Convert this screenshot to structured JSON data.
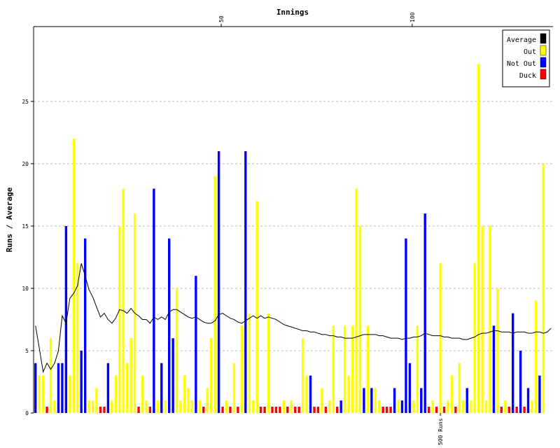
{
  "chart_data": {
    "type": "bar",
    "xlabel": "Innings",
    "ylabel": "Runs / Average",
    "ylim": [
      0,
      31
    ],
    "xlim": [
      0.5,
      136.5
    ],
    "yticks": [
      0,
      5,
      10,
      15,
      20,
      25
    ],
    "xticks": [
      50,
      100
    ],
    "grid": true,
    "legend_position": "top-right",
    "legend": [
      {
        "name": "Average",
        "color": "#000000"
      },
      {
        "name": "Out",
        "color": "#ffff00"
      },
      {
        "name": "Not Out",
        "color": "#0000ff"
      },
      {
        "name": "Duck",
        "color": "#ff0000"
      }
    ],
    "colors": {
      "out": "#ffff00",
      "not_out": "#0000ff",
      "duck": "#ff0000",
      "average": "#000000",
      "grid": "#bbbbbb"
    },
    "innings": [
      {
        "r": 4,
        "t": "N"
      },
      {
        "r": 3,
        "t": "O"
      },
      {
        "r": 3,
        "t": "O"
      },
      {
        "r": 0,
        "t": "D"
      },
      {
        "r": 6,
        "t": "O"
      },
      {
        "r": 1,
        "t": "O"
      },
      {
        "r": 4,
        "t": "N"
      },
      {
        "r": 4,
        "t": "N"
      },
      {
        "r": 15,
        "t": "N"
      },
      {
        "r": 3,
        "t": "O"
      },
      {
        "r": 22,
        "t": "O"
      },
      {
        "r": 12,
        "t": "O"
      },
      {
        "r": 5,
        "t": "N"
      },
      {
        "r": 14,
        "t": "N"
      },
      {
        "r": 1,
        "t": "O"
      },
      {
        "r": 1,
        "t": "O"
      },
      {
        "r": 2,
        "t": "O"
      },
      {
        "r": 0,
        "t": "D"
      },
      {
        "r": 0,
        "t": "D"
      },
      {
        "r": 4,
        "t": "N"
      },
      {
        "r": 1,
        "t": "O"
      },
      {
        "r": 3,
        "t": "O"
      },
      {
        "r": 15,
        "t": "O"
      },
      {
        "r": 18,
        "t": "O"
      },
      {
        "r": 4,
        "t": "O"
      },
      {
        "r": 6,
        "t": "O"
      },
      {
        "r": 16,
        "t": "O"
      },
      {
        "r": 0,
        "t": "D"
      },
      {
        "r": 3,
        "t": "O"
      },
      {
        "r": 1,
        "t": "O"
      },
      {
        "r": 0,
        "t": "D"
      },
      {
        "r": 18,
        "t": "N"
      },
      {
        "r": 1,
        "t": "O"
      },
      {
        "r": 4,
        "t": "N"
      },
      {
        "r": 1,
        "t": "O"
      },
      {
        "r": 14,
        "t": "N"
      },
      {
        "r": 6,
        "t": "N"
      },
      {
        "r": 10,
        "t": "O"
      },
      {
        "r": 1,
        "t": "O"
      },
      {
        "r": 3,
        "t": "O"
      },
      {
        "r": 2,
        "t": "O"
      },
      {
        "r": 1,
        "t": "O"
      },
      {
        "r": 11,
        "t": "N"
      },
      {
        "r": 1,
        "t": "O"
      },
      {
        "r": 0,
        "t": "D"
      },
      {
        "r": 2,
        "t": "O"
      },
      {
        "r": 6,
        "t": "O"
      },
      {
        "r": 19,
        "t": "O"
      },
      {
        "r": 21,
        "t": "N"
      },
      {
        "r": 0,
        "t": "D"
      },
      {
        "r": 1,
        "t": "O"
      },
      {
        "r": 0,
        "t": "D"
      },
      {
        "r": 4,
        "t": "O"
      },
      {
        "r": 0,
        "t": "D"
      },
      {
        "r": 7,
        "t": "O"
      },
      {
        "r": 21,
        "t": "N"
      },
      {
        "r": 8,
        "t": "O"
      },
      {
        "r": 1,
        "t": "O"
      },
      {
        "r": 17,
        "t": "O"
      },
      {
        "r": 0,
        "t": "D"
      },
      {
        "r": 0,
        "t": "D"
      },
      {
        "r": 8,
        "t": "O"
      },
      {
        "r": 0,
        "t": "D"
      },
      {
        "r": 0,
        "t": "D"
      },
      {
        "r": 0,
        "t": "D"
      },
      {
        "r": 1,
        "t": "O"
      },
      {
        "r": 0,
        "t": "D"
      },
      {
        "r": 1,
        "t": "O"
      },
      {
        "r": 0,
        "t": "D"
      },
      {
        "r": 0,
        "t": "D"
      },
      {
        "r": 6,
        "t": "O"
      },
      {
        "r": 3,
        "t": "O"
      },
      {
        "r": 3,
        "t": "N"
      },
      {
        "r": 0,
        "t": "D"
      },
      {
        "r": 0,
        "t": "D"
      },
      {
        "r": 2,
        "t": "O"
      },
      {
        "r": 0,
        "t": "D"
      },
      {
        "r": 1,
        "t": "O"
      },
      {
        "r": 7,
        "t": "O"
      },
      {
        "r": 0,
        "t": "D"
      },
      {
        "r": 1,
        "t": "N"
      },
      {
        "r": 7,
        "t": "O"
      },
      {
        "r": 3,
        "t": "O"
      },
      {
        "r": 7,
        "t": "O"
      },
      {
        "r": 18,
        "t": "O"
      },
      {
        "r": 15,
        "t": "O"
      },
      {
        "r": 2,
        "t": "N"
      },
      {
        "r": 7,
        "t": "O"
      },
      {
        "r": 2,
        "t": "N"
      },
      {
        "r": 2,
        "t": "O"
      },
      {
        "r": 1,
        "t": "O"
      },
      {
        "r": 0,
        "t": "D"
      },
      {
        "r": 0,
        "t": "D"
      },
      {
        "r": 0,
        "t": "D"
      },
      {
        "r": 2,
        "t": "N"
      },
      {
        "r": 1,
        "t": "O"
      },
      {
        "r": 1,
        "t": "N"
      },
      {
        "r": 14,
        "t": "N"
      },
      {
        "r": 4,
        "t": "N"
      },
      {
        "r": 1,
        "t": "O"
      },
      {
        "r": 7,
        "t": "O"
      },
      {
        "r": 2,
        "t": "N"
      },
      {
        "r": 16,
        "t": "N"
      },
      {
        "r": 0,
        "t": "D"
      },
      {
        "r": 1,
        "t": "O"
      },
      {
        "r": 0,
        "t": "D"
      },
      {
        "r": 12,
        "t": "O"
      },
      {
        "r": 0,
        "t": "D"
      },
      {
        "r": 1,
        "t": "O"
      },
      {
        "r": 3,
        "t": "O"
      },
      {
        "r": 0,
        "t": "D"
      },
      {
        "r": 4,
        "t": "O"
      },
      {
        "r": 1,
        "t": "O"
      },
      {
        "r": 2,
        "t": "N"
      },
      {
        "r": 1,
        "t": "O"
      },
      {
        "r": 12,
        "t": "O"
      },
      {
        "r": 28,
        "t": "O"
      },
      {
        "r": 15,
        "t": "O"
      },
      {
        "r": 1,
        "t": "O"
      },
      {
        "r": 15,
        "t": "O"
      },
      {
        "r": 7,
        "t": "N"
      },
      {
        "r": 10,
        "t": "O"
      },
      {
        "r": 0,
        "t": "D"
      },
      {
        "r": 1,
        "t": "O"
      },
      {
        "r": 0,
        "t": "D"
      },
      {
        "r": 8,
        "t": "N"
      },
      {
        "r": 0,
        "t": "D"
      },
      {
        "r": 5,
        "t": "N"
      },
      {
        "r": 0,
        "t": "D"
      },
      {
        "r": 2,
        "t": "N"
      },
      {
        "r": 1,
        "t": "O"
      },
      {
        "r": 9,
        "t": "O"
      },
      {
        "r": 3,
        "t": "N"
      },
      {
        "r": 20,
        "t": "O"
      }
    ],
    "average": [
      7.0,
      5.2,
      3.3,
      4.0,
      3.5,
      4.0,
      5.0,
      7.8,
      7.2,
      9.2,
      9.6,
      10.2,
      12.0,
      11.0,
      9.9,
      9.3,
      8.5,
      7.7,
      8.0,
      7.5,
      7.2,
      7.6,
      8.3,
      8.2,
      8.0,
      8.4,
      8.0,
      7.8,
      7.5,
      7.5,
      7.2,
      7.7,
      7.5,
      7.7,
      7.5,
      8.1,
      8.3,
      8.3,
      8.1,
      7.9,
      7.7,
      7.6,
      7.7,
      7.5,
      7.3,
      7.2,
      7.2,
      7.4,
      7.9,
      8.0,
      7.8,
      7.6,
      7.5,
      7.3,
      7.2,
      7.4,
      7.6,
      7.8,
      7.6,
      7.8,
      7.6,
      7.7,
      7.6,
      7.5,
      7.3,
      7.1,
      7.0,
      6.9,
      6.8,
      6.7,
      6.6,
      6.6,
      6.5,
      6.5,
      6.4,
      6.3,
      6.3,
      6.2,
      6.2,
      6.1,
      6.1,
      6.0,
      6.0,
      6.0,
      6.1,
      6.2,
      6.3,
      6.3,
      6.3,
      6.3,
      6.2,
      6.2,
      6.1,
      6.0,
      6.0,
      6.0,
      5.9,
      6.0,
      6.0,
      6.1,
      6.1,
      6.2,
      6.4,
      6.3,
      6.2,
      6.2,
      6.2,
      6.1,
      6.1,
      6.0,
      6.0,
      6.0,
      5.9,
      5.9,
      6.0,
      6.1,
      6.3,
      6.4,
      6.4,
      6.5,
      6.6,
      6.6,
      6.5,
      6.5,
      6.5,
      6.4,
      6.5,
      6.5,
      6.5,
      6.4,
      6.4,
      6.5,
      6.5,
      6.4,
      6.5,
      6.8
    ],
    "milestones": [
      {
        "label": "500 Runs",
        "inning": 107
      }
    ]
  }
}
